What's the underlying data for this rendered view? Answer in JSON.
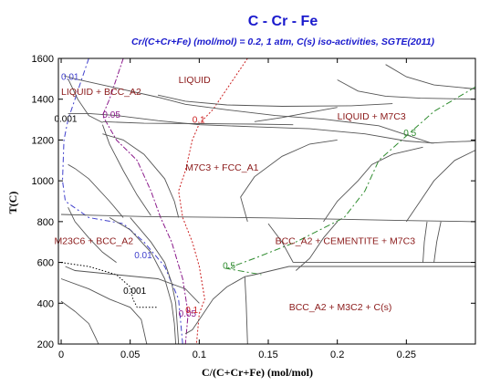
{
  "chart_data": {
    "type": "line",
    "title": "C - Cr - Fe",
    "subtitle": "Cr/(C+Cr+Fe) (mol/mol)  = 0.2,  1 atm, C(s) iso-activities, SGTE(2011)",
    "xlabel": "C/(C+Cr+Fe) (mol/mol)",
    "ylabel": "T(C)",
    "xlim": [
      -0.002,
      0.3
    ],
    "ylim": [
      200,
      1600
    ],
    "x_ticks": [
      {
        "value": 0,
        "label": "0"
      },
      {
        "value": 0.05,
        "label": "0.05"
      },
      {
        "value": 0.1,
        "label": "0.1"
      },
      {
        "value": 0.15,
        "label": "0.15"
      },
      {
        "value": 0.2,
        "label": "0.2"
      },
      {
        "value": 0.25,
        "label": "0.25"
      }
    ],
    "y_ticks": [
      {
        "value": 200,
        "label": "200"
      },
      {
        "value": 400,
        "label": "400"
      },
      {
        "value": 600,
        "label": "600"
      },
      {
        "value": 800,
        "label": "800"
      },
      {
        "value": 1000,
        "label": "1000"
      },
      {
        "value": 1200,
        "label": "1200"
      },
      {
        "value": 1400,
        "label": "1400"
      },
      {
        "value": 1600,
        "label": "1600"
      }
    ],
    "grid": false,
    "phase_regions": [
      {
        "label": "LIQUID",
        "x": 0.085,
        "y": 1480
      },
      {
        "label": "LIQUID + BCC_A2",
        "x": 0.0,
        "y": 1420
      },
      {
        "label": "LIQUID + M7C3",
        "x": 0.2,
        "y": 1300
      },
      {
        "label": "M7C3 + FCC_A1",
        "x": 0.09,
        "y": 1050
      },
      {
        "label": "M23C6 + BCC_A2",
        "x": -0.005,
        "y": 690
      },
      {
        "label": "BCC_A2 + CEMENTITE + M7C3",
        "x": 0.155,
        "y": 690
      },
      {
        "label": "BCC_A2 + M3C2 + C(s)",
        "x": 0.165,
        "y": 365
      }
    ],
    "boundary_lines": [
      [
        [
          0.002,
          1515
        ],
        [
          0.01,
          1500
        ],
        [
          0.04,
          1455
        ],
        [
          0.07,
          1410
        ],
        [
          0.09,
          1375
        ],
        [
          0.12,
          1348
        ],
        [
          0.155,
          1320
        ],
        [
          0.19,
          1302
        ],
        [
          0.23,
          1270
        ],
        [
          0.25,
          1225
        ],
        [
          0.268,
          1185
        ],
        [
          0.28,
          1190
        ],
        [
          0.3,
          1195
        ]
      ],
      [
        [
          0.005,
          1500
        ],
        [
          0.012,
          1400
        ],
        [
          0.02,
          1320
        ],
        [
          0.03,
          1285
        ]
      ],
      [
        [
          0.005,
          1330
        ],
        [
          0.02,
          1330
        ],
        [
          0.04,
          1320
        ],
        [
          0.07,
          1295
        ],
        [
          0.1,
          1275
        ],
        [
          0.14,
          1265
        ],
        [
          0.18,
          1255
        ],
        [
          0.22,
          1230
        ],
        [
          0.25,
          1195
        ],
        [
          0.27,
          1185
        ]
      ],
      [
        [
          0.03,
          1290
        ],
        [
          0.06,
          1282
        ],
        [
          0.1,
          1280
        ],
        [
          0.14,
          1278
        ],
        [
          0.168,
          1275
        ]
      ],
      [
        [
          0.2,
          1495
        ],
        [
          0.215,
          1440
        ],
        [
          0.235,
          1415
        ],
        [
          0.26,
          1405
        ],
        [
          0.3,
          1400
        ]
      ],
      [
        [
          0.235,
          1570
        ],
        [
          0.25,
          1510
        ],
        [
          0.27,
          1470
        ],
        [
          0.3,
          1450
        ]
      ],
      [
        [
          0.07,
          1420
        ],
        [
          0.09,
          1390
        ],
        [
          0.12,
          1372
        ],
        [
          0.16,
          1365
        ],
        [
          0.21,
          1368
        ],
        [
          0.24,
          1378
        ]
      ],
      [
        [
          0.14,
          1290
        ],
        [
          0.16,
          1310
        ],
        [
          0.18,
          1335
        ],
        [
          0.2,
          1360
        ]
      ],
      [
        [
          0.03,
          1275
        ],
        [
          0.035,
          1180
        ],
        [
          0.045,
          1050
        ],
        [
          0.055,
          930
        ],
        [
          0.065,
          830
        ]
      ],
      [
        [
          0.03,
          1230
        ],
        [
          0.045,
          1200
        ],
        [
          0.06,
          1130
        ],
        [
          0.075,
          1010
        ],
        [
          0.082,
          900
        ],
        [
          0.085,
          820
        ]
      ],
      [
        [
          0.005,
          1080
        ],
        [
          0.01,
          1060
        ],
        [
          0.02,
          1010
        ],
        [
          0.035,
          900
        ],
        [
          0.045,
          820
        ]
      ],
      [
        [
          0.0,
          835
        ],
        [
          0.03,
          830
        ],
        [
          0.06,
          825
        ],
        [
          0.1,
          822
        ],
        [
          0.15,
          818
        ],
        [
          0.2,
          812
        ],
        [
          0.25,
          805
        ],
        [
          0.3,
          800
        ]
      ],
      [
        [
          0.035,
          820
        ],
        [
          0.05,
          760
        ],
        [
          0.065,
          650
        ],
        [
          0.075,
          520
        ],
        [
          0.08,
          400
        ],
        [
          0.082,
          300
        ],
        [
          0.083,
          200
        ]
      ],
      [
        [
          0.05,
          820
        ],
        [
          0.065,
          700
        ],
        [
          0.075,
          600
        ],
        [
          0.08,
          500
        ],
        [
          0.083,
          400
        ],
        [
          0.085,
          200
        ]
      ],
      [
        [
          0.005,
          870
        ],
        [
          0.01,
          800
        ],
        [
          0.02,
          720
        ],
        [
          0.03,
          650
        ],
        [
          0.04,
          600
        ]
      ],
      [
        [
          0.003,
          580
        ],
        [
          0.01,
          560
        ],
        [
          0.04,
          540
        ],
        [
          0.07,
          520
        ],
        [
          0.09,
          470
        ],
        [
          0.1,
          400
        ]
      ],
      [
        [
          0.0,
          520
        ],
        [
          0.02,
          470
        ],
        [
          0.035,
          420
        ],
        [
          0.05,
          380
        ],
        [
          0.058,
          320
        ],
        [
          0.062,
          200
        ]
      ],
      [
        [
          0.0,
          410
        ],
        [
          0.01,
          360
        ],
        [
          0.02,
          300
        ],
        [
          0.025,
          230
        ],
        [
          0.027,
          200
        ]
      ],
      [
        [
          0.09,
          250
        ],
        [
          0.095,
          270
        ],
        [
          0.1,
          320
        ],
        [
          0.11,
          420
        ],
        [
          0.12,
          480
        ],
        [
          0.133,
          530
        ],
        [
          0.14,
          540
        ],
        [
          0.165,
          580
        ],
        [
          0.3,
          580
        ]
      ],
      [
        [
          0.133,
          530
        ],
        [
          0.134,
          400
        ],
        [
          0.135,
          200
        ]
      ],
      [
        [
          0.168,
          600
        ],
        [
          0.3,
          600
        ]
      ],
      [
        [
          0.168,
          600
        ],
        [
          0.16,
          700
        ],
        [
          0.15,
          790
        ]
      ],
      [
        [
          0.135,
          800
        ],
        [
          0.13,
          920
        ],
        [
          0.14,
          1020
        ],
        [
          0.16,
          1120
        ],
        [
          0.18,
          1180
        ],
        [
          0.2,
          1200
        ]
      ],
      [
        [
          0.19,
          800
        ],
        [
          0.2,
          900
        ],
        [
          0.215,
          1000
        ],
        [
          0.225,
          1080
        ],
        [
          0.24,
          1130
        ],
        [
          0.262,
          1165
        ]
      ],
      [
        [
          0.25,
          800
        ],
        [
          0.26,
          900
        ],
        [
          0.27,
          1000
        ],
        [
          0.285,
          1100
        ],
        [
          0.3,
          1150
        ]
      ],
      [
        [
          0.262,
          600
        ],
        [
          0.263,
          700
        ],
        [
          0.265,
          800
        ]
      ],
      [
        [
          0.27,
          600
        ],
        [
          0.272,
          700
        ],
        [
          0.275,
          800
        ]
      ],
      [
        [
          0.17,
          560
        ],
        [
          0.18,
          620
        ],
        [
          0.19,
          720
        ],
        [
          0.2,
          800
        ]
      ]
    ],
    "iso_activity_lines": [
      {
        "label": "0.01",
        "color": "#4040cc",
        "label_pos": [
          0.0,
          1495
        ],
        "label_pos_2": [
          0.053,
          620
        ],
        "points": [
          [
            0.02,
            1600
          ],
          [
            0.015,
            1500
          ],
          [
            0.01,
            1400
          ],
          [
            0.005,
            1300
          ],
          [
            0.002,
            1200
          ],
          [
            0.001,
            1000
          ],
          [
            0.003,
            900
          ],
          [
            0.02,
            820
          ],
          [
            0.045,
            790
          ],
          [
            0.06,
            700
          ],
          [
            0.075,
            580
          ],
          [
            0.085,
            420
          ],
          [
            0.088,
            200
          ]
        ]
      },
      {
        "label": "0.05",
        "color": "#8b1a8b",
        "label_pos": [
          0.03,
          1310
        ],
        "label_pos_2": [
          0.085,
          335
        ],
        "points": [
          [
            0.045,
            1600
          ],
          [
            0.035,
            1400
          ],
          [
            0.03,
            1320
          ],
          [
            0.04,
            1200
          ],
          [
            0.055,
            1100
          ],
          [
            0.065,
            950
          ],
          [
            0.072,
            820
          ],
          [
            0.08,
            700
          ],
          [
            0.088,
            520
          ],
          [
            0.092,
            350
          ],
          [
            0.09,
            200
          ]
        ]
      },
      {
        "label": "0.1",
        "color": "#cc2020",
        "label_pos": [
          0.095,
          1285
        ],
        "label_pos_2": [
          0.09,
          353
        ],
        "points": [
          [
            0.135,
            1600
          ],
          [
            0.12,
            1450
          ],
          [
            0.11,
            1350
          ],
          [
            0.1,
            1280
          ],
          [
            0.095,
            1200
          ],
          [
            0.09,
            1050
          ],
          [
            0.085,
            950
          ],
          [
            0.088,
            820
          ],
          [
            0.095,
            700
          ],
          [
            0.1,
            580
          ],
          [
            0.104,
            420
          ],
          [
            0.1,
            350
          ],
          [
            0.098,
            200
          ]
        ]
      },
      {
        "label": "0.5",
        "color": "#2e8b2e",
        "label_pos": [
          0.248,
          1220
        ],
        "label_pos_2": [
          0.117,
          570
        ],
        "points": [
          [
            0.3,
            1460
          ],
          [
            0.27,
            1340
          ],
          [
            0.25,
            1220
          ],
          [
            0.23,
            1100
          ],
          [
            0.22,
            950
          ],
          [
            0.205,
            820
          ],
          [
            0.17,
            700
          ],
          [
            0.14,
            620
          ],
          [
            0.12,
            570
          ],
          [
            0.145,
            540
          ]
        ]
      },
      {
        "label": "0.001",
        "color": "#000000",
        "label_pos": [
          -0.005,
          1290
        ],
        "label_pos_2": [
          0.045,
          445
        ],
        "points": [
          [
            0.0,
            600
          ],
          [
            0.02,
            580
          ],
          [
            0.04,
            540
          ],
          [
            0.05,
            480
          ],
          [
            0.052,
            420
          ],
          [
            0.055,
            380
          ],
          [
            0.07,
            380
          ]
        ]
      }
    ]
  }
}
